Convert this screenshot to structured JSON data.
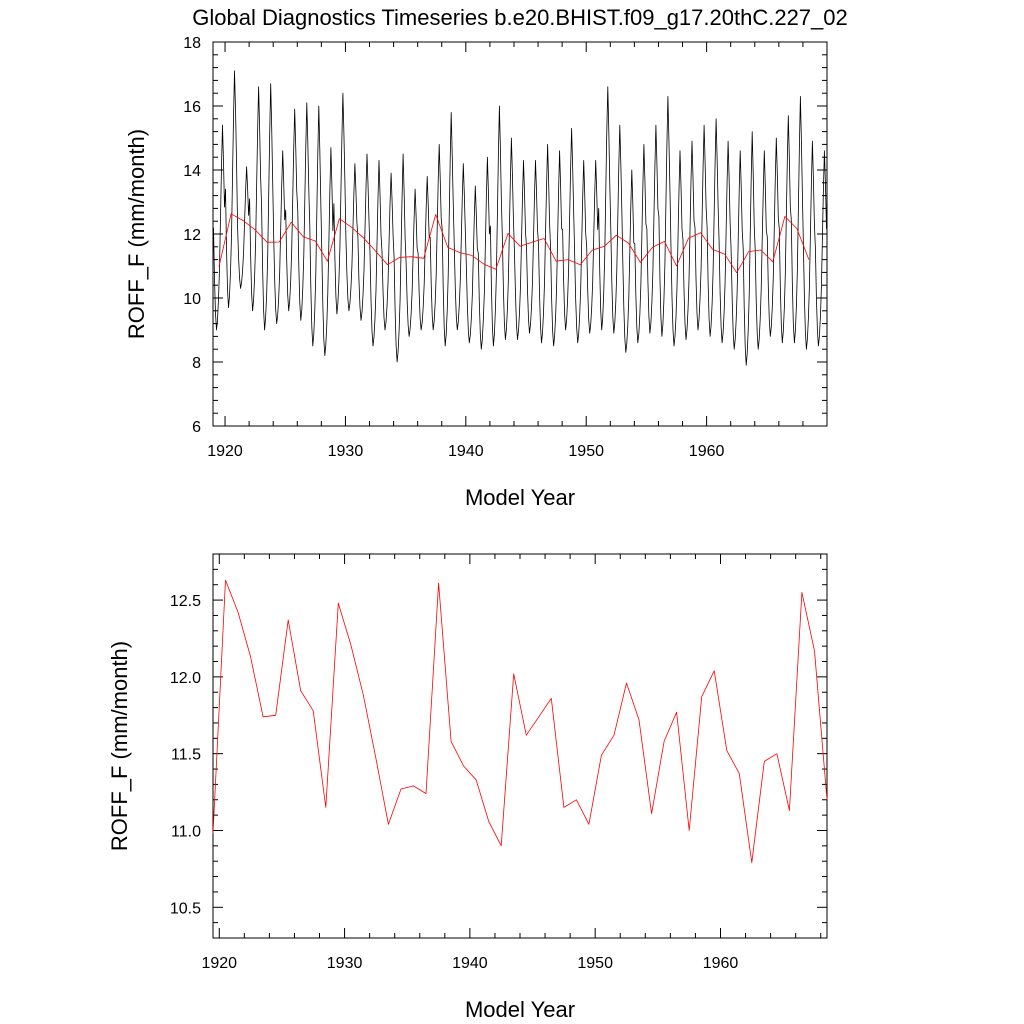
{
  "title": "Global Diagnostics Timeseries b.e20.BHIST.f09_g17.20thC.227_02",
  "chart_data": [
    {
      "type": "line",
      "name": "monthly-and-annual",
      "xlabel": "Model Year",
      "ylabel": "ROFF_F (mm/month)",
      "xlim": [
        1919,
        1970
      ],
      "ylim": [
        6,
        18
      ],
      "xticks": [
        1920,
        1930,
        1940,
        1950,
        1960
      ],
      "yticks": [
        6,
        8,
        10,
        12,
        14,
        16,
        18
      ],
      "ytick_labels": [
        "6",
        "8",
        "10",
        "12",
        "14",
        "16",
        "18"
      ],
      "series": [
        {
          "name": "monthly",
          "color": "#000000",
          "kind": "seasonal",
          "x_start": 1919.04,
          "step": 0.08333,
          "peaks": [
            15.4,
            17.1,
            14.1,
            16.6,
            16.7,
            14.6,
            15.9,
            16.1,
            16.0,
            14.7,
            16.4,
            14.2,
            14.5,
            14.3,
            13.9,
            14.5,
            13.4,
            13.8,
            14.8,
            15.8,
            14.2,
            13.5,
            14.4,
            16.0,
            15.0,
            14.3,
            14.3,
            14.8,
            14.6,
            15.3,
            14.3,
            14.3,
            16.6,
            15.4,
            14.0,
            14.8,
            15.4,
            16.3,
            14.6,
            14.9,
            15.4,
            15.6,
            14.9,
            14.6,
            15.2,
            14.6,
            15.0,
            15.7,
            16.3,
            14.9,
            14.6
          ],
          "troughs": [
            9.0,
            9.7,
            10.3,
            9.6,
            9.0,
            9.2,
            9.6,
            9.3,
            8.5,
            8.2,
            9.5,
            9.6,
            9.3,
            8.5,
            9.0,
            8.0,
            8.8,
            9.0,
            9.0,
            8.5,
            9.0,
            8.6,
            8.4,
            8.5,
            8.7,
            8.7,
            8.9,
            8.6,
            8.5,
            9.0,
            8.6,
            8.9,
            9.0,
            8.9,
            8.3,
            8.6,
            8.9,
            8.8,
            8.5,
            8.7,
            9.0,
            8.8,
            8.6,
            8.4,
            7.9,
            8.4,
            8.8,
            8.6,
            8.6,
            8.4,
            8.5
          ]
        },
        {
          "name": "annual",
          "color": "#ff0000",
          "x": [
            1919.5,
            1920.5,
            1921.5,
            1922.5,
            1923.5,
            1924.5,
            1925.5,
            1926.5,
            1927.5,
            1928.5,
            1929.5,
            1930.5,
            1931.5,
            1932.5,
            1933.5,
            1934.5,
            1935.5,
            1936.5,
            1937.5,
            1938.5,
            1939.5,
            1940.5,
            1941.5,
            1942.5,
            1943.5,
            1944.5,
            1945.5,
            1946.5,
            1947.5,
            1948.5,
            1949.5,
            1950.5,
            1951.5,
            1952.5,
            1953.5,
            1954.5,
            1955.5,
            1956.5,
            1957.5,
            1958.5,
            1959.5,
            1960.5,
            1961.5,
            1962.5,
            1963.5,
            1964.5,
            1965.5,
            1966.5,
            1967.5,
            1968.5
          ],
          "values": [
            10.98,
            12.63,
            12.42,
            12.13,
            11.74,
            11.75,
            12.37,
            11.91,
            11.78,
            11.15,
            12.48,
            12.21,
            11.88,
            11.47,
            11.04,
            11.27,
            11.29,
            11.24,
            12.61,
            11.58,
            11.42,
            11.33,
            11.06,
            10.9,
            12.02,
            11.62,
            11.74,
            11.86,
            11.15,
            11.2,
            11.04,
            11.49,
            11.62,
            11.96,
            11.72,
            11.11,
            11.58,
            11.77,
            11.0,
            11.87,
            12.04,
            11.52,
            11.37,
            10.79,
            11.45,
            11.5,
            11.13,
            12.55,
            12.17,
            11.2
          ]
        }
      ]
    },
    {
      "type": "line",
      "name": "annual-only",
      "xlabel": "Model Year",
      "ylabel": "ROFF_F (mm/month)",
      "xlim": [
        1919.5,
        1968.5
      ],
      "ylim": [
        10.3,
        12.8
      ],
      "xticks": [
        1920,
        1930,
        1940,
        1950,
        1960
      ],
      "yticks": [
        10.5,
        11.0,
        11.5,
        12.0,
        12.5
      ],
      "ytick_labels": [
        "10.5",
        "11.0",
        "11.5",
        "12.0",
        "12.5"
      ],
      "series": [
        {
          "name": "annual",
          "color": "#ff0000",
          "x": [
            1919.5,
            1920.5,
            1921.5,
            1922.5,
            1923.5,
            1924.5,
            1925.5,
            1926.5,
            1927.5,
            1928.5,
            1929.5,
            1930.5,
            1931.5,
            1932.5,
            1933.5,
            1934.5,
            1935.5,
            1936.5,
            1937.5,
            1938.5,
            1939.5,
            1940.5,
            1941.5,
            1942.5,
            1943.5,
            1944.5,
            1945.5,
            1946.5,
            1947.5,
            1948.5,
            1949.5,
            1950.5,
            1951.5,
            1952.5,
            1953.5,
            1954.5,
            1955.5,
            1956.5,
            1957.5,
            1958.5,
            1959.5,
            1960.5,
            1961.5,
            1962.5,
            1963.5,
            1964.5,
            1965.5,
            1966.5,
            1967.5,
            1968.5
          ],
          "values": [
            10.98,
            12.63,
            12.42,
            12.13,
            11.74,
            11.75,
            12.37,
            11.91,
            11.78,
            11.15,
            12.48,
            12.21,
            11.88,
            11.47,
            11.04,
            11.27,
            11.29,
            11.24,
            12.61,
            11.58,
            11.42,
            11.33,
            11.06,
            10.9,
            12.02,
            11.62,
            11.74,
            11.86,
            11.15,
            11.2,
            11.04,
            11.49,
            11.62,
            11.96,
            11.72,
            11.11,
            11.58,
            11.77,
            11.0,
            11.87,
            12.04,
            11.52,
            11.37,
            10.79,
            11.45,
            11.5,
            11.13,
            12.55,
            12.17,
            11.2
          ]
        }
      ]
    }
  ]
}
